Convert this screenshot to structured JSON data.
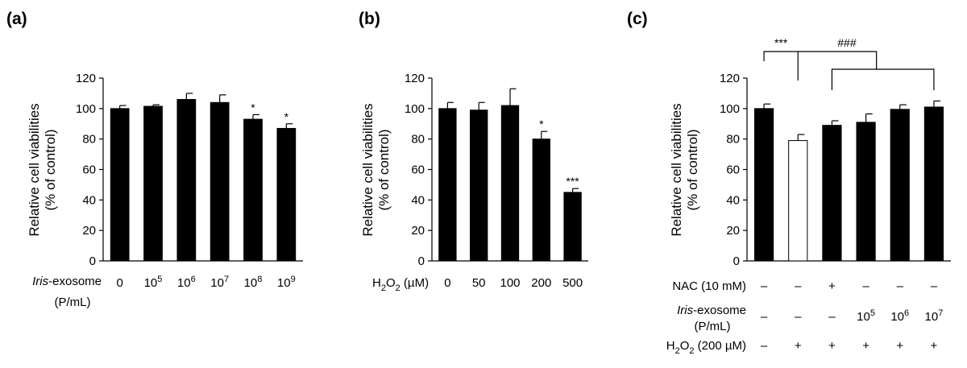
{
  "chart_data": [
    {
      "type": "bar",
      "panel_label": "(a)",
      "ylabel_line1": "Relative cell viabilities",
      "ylabel_line2": "(% of control)",
      "ylim": [
        0,
        120
      ],
      "yticks": [
        "0",
        "20",
        "40",
        "60",
        "80",
        "100",
        "120"
      ],
      "x_title_italic": "Iris",
      "x_title_rest": "-exosome",
      "x_title_line2": "(P/mL)",
      "categories": [
        {
          "base": "0",
          "exp": ""
        },
        {
          "base": "10",
          "exp": "5"
        },
        {
          "base": "10",
          "exp": "6"
        },
        {
          "base": "10",
          "exp": "7"
        },
        {
          "base": "10",
          "exp": "8"
        },
        {
          "base": "10",
          "exp": "9"
        }
      ],
      "values": [
        100,
        101.5,
        106,
        104,
        93,
        87
      ],
      "errors": [
        2,
        1,
        4,
        5,
        3,
        3
      ],
      "significance": [
        "",
        "",
        "",
        "",
        "*",
        "*"
      ]
    },
    {
      "type": "bar",
      "panel_label": "(b)",
      "ylabel_line1": "Relative cell viabilities",
      "ylabel_line2": "(% of control)",
      "ylim": [
        0,
        120
      ],
      "yticks": [
        "0",
        "20",
        "40",
        "60",
        "80",
        "100",
        "120"
      ],
      "x_title": "H2O2 (µM)",
      "categories": [
        "0",
        "50",
        "100",
        "200",
        "500"
      ],
      "values": [
        100,
        99,
        102,
        80,
        45
      ],
      "errors": [
        4,
        5,
        11,
        5,
        2.5
      ],
      "significance": [
        "",
        "",
        "",
        "*",
        "***"
      ]
    },
    {
      "type": "bar",
      "panel_label": "(c)",
      "ylabel_line1": "Relative cell viabilities",
      "ylabel_line2": "(% of control)",
      "ylim": [
        0,
        120
      ],
      "yticks": [
        "0",
        "20",
        "40",
        "60",
        "80",
        "100",
        "120"
      ],
      "values": [
        100,
        79,
        89,
        91,
        99.5,
        101
      ],
      "errors": [
        3,
        4,
        3,
        5.5,
        3,
        4
      ],
      "fills": [
        "#000000",
        "#ffffff",
        "#000000",
        "#000000",
        "#000000",
        "#000000"
      ],
      "brackets": [
        {
          "label": "***",
          "from": 0,
          "to": 1
        },
        {
          "label": "###",
          "from": 1,
          "to": 2
        }
      ],
      "rows": [
        {
          "label": "NAC (10 mM)",
          "cells": [
            "–",
            "–",
            "+",
            "–",
            "–",
            "–"
          ]
        },
        {
          "label_italic": "Iris",
          "label_rest": "-exosome",
          "label_line2": "(P/mL)",
          "cells": [
            {
              "base": "–"
            },
            {
              "base": "–"
            },
            {
              "base": "–"
            },
            {
              "base": "10",
              "exp": "5"
            },
            {
              "base": "10",
              "exp": "6"
            },
            {
              "base": "10",
              "exp": "7"
            }
          ]
        },
        {
          "label": "H2O2 (200 µM)",
          "cells": [
            "–",
            "+",
            "+",
            "+",
            "+",
            "+"
          ]
        }
      ]
    }
  ]
}
